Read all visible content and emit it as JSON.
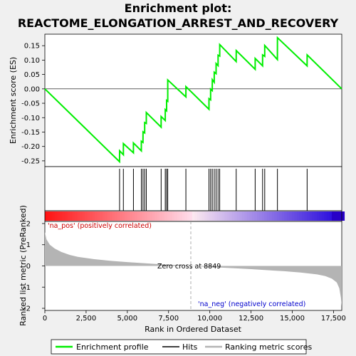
{
  "title_line1": "Enrichment plot:",
  "title_line2": "REACTOME_ELONGATION_ARREST_AND_RECOVERY",
  "top_ylabel": "Enrichment score (ES)",
  "bottom_ylabel": "Ranked list metric (PreRanked)",
  "xlabel": "Rank in Ordered Dataset",
  "pos_label": "'na_pos' (positively correlated)",
  "neg_label": "'na_neg' (negatively correlated)",
  "zero_cross_label": "Zero cross at 8849",
  "legend": {
    "enrichment": "Enrichment profile",
    "hits": "Hits",
    "ranking": "Ranking metric scores"
  },
  "colors": {
    "es_line": "#00ee00",
    "hits": "#000000",
    "metric_fill": "#b4b4b4",
    "pos_text": "#cc0000",
    "neg_text": "#0000cc"
  },
  "chart_data": [
    {
      "type": "line",
      "name": "enrichment-profile",
      "xlim": [
        0,
        18000
      ],
      "ylim": [
        -0.27,
        0.19
      ],
      "yticks": [
        -0.25,
        -0.2,
        -0.15,
        -0.1,
        -0.05,
        0.0,
        0.05,
        0.1,
        0.15
      ],
      "ytick_labels": [
        "-0.25",
        "-0.20",
        "-0.15",
        "-0.10",
        "-0.05",
        "0.00",
        "0.05",
        "0.10",
        "0.15"
      ],
      "x": [
        0,
        4530,
        4531,
        4760,
        4761,
        5370,
        5371,
        5850,
        5851,
        5950,
        5951,
        6050,
        6051,
        6150,
        6151,
        7050,
        7051,
        7300,
        7301,
        7380,
        7381,
        7450,
        7451,
        8550,
        8551,
        9950,
        9951,
        10050,
        10051,
        10150,
        10151,
        10270,
        10271,
        10380,
        10381,
        10500,
        10501,
        10600,
        10601,
        11600,
        11601,
        12750,
        12751,
        13200,
        13201,
        13330,
        13331,
        14100,
        14101,
        15900,
        15901,
        18000
      ],
      "y": [
        0.0,
        -0.253,
        -0.215,
        -0.229,
        -0.19,
        -0.222,
        -0.188,
        -0.215,
        -0.182,
        -0.186,
        -0.149,
        -0.153,
        -0.117,
        -0.12,
        -0.082,
        -0.133,
        -0.096,
        -0.11,
        -0.072,
        -0.076,
        -0.04,
        -0.043,
        0.031,
        -0.028,
        0.008,
        -0.071,
        -0.034,
        -0.038,
        -0.001,
        -0.006,
        0.032,
        0.023,
        0.058,
        0.053,
        0.088,
        0.081,
        0.117,
        0.114,
        0.154,
        0.095,
        0.133,
        0.068,
        0.106,
        0.08,
        0.118,
        0.113,
        0.151,
        0.102,
        0.178,
        0.08,
        0.118,
        0.0
      ]
    },
    {
      "type": "hits",
      "name": "hits",
      "x": [
        4530,
        4760,
        5370,
        5850,
        5950,
        6050,
        6150,
        7050,
        7300,
        7380,
        7450,
        8550,
        9950,
        10050,
        10150,
        10270,
        10380,
        10500,
        10600,
        11600,
        12750,
        13200,
        13330,
        14100,
        15900
      ]
    },
    {
      "type": "area",
      "name": "ranking-metric-scores",
      "xlim": [
        0,
        18000
      ],
      "ylim": [
        -2.1,
        2.1
      ],
      "yticks": [
        -2,
        -1,
        0,
        1,
        2
      ],
      "ytick_labels": [
        "-2",
        "-1",
        "0",
        "1",
        "2"
      ],
      "xticks": [
        0,
        2500,
        5000,
        7500,
        10000,
        12500,
        15000,
        17500
      ],
      "xtick_labels": [
        "0",
        "2,500",
        "5,000",
        "7,500",
        "10,000",
        "12,500",
        "15,000",
        "17,500"
      ],
      "x": [
        0,
        100,
        300,
        600,
        1000,
        1500,
        2000,
        3000,
        4000,
        5000,
        6000,
        7000,
        8000,
        8849,
        9500,
        10500,
        11500,
        12500,
        13500,
        14500,
        15500,
        16500,
        17000,
        17400,
        17700,
        17850,
        17950,
        18000
      ],
      "y": [
        1.6,
        1.25,
        1.0,
        0.82,
        0.66,
        0.52,
        0.43,
        0.32,
        0.24,
        0.18,
        0.13,
        0.08,
        0.04,
        0.0,
        -0.03,
        -0.07,
        -0.11,
        -0.15,
        -0.2,
        -0.25,
        -0.31,
        -0.4,
        -0.48,
        -0.6,
        -0.78,
        -1.05,
        -1.5,
        -1.9
      ]
    }
  ]
}
